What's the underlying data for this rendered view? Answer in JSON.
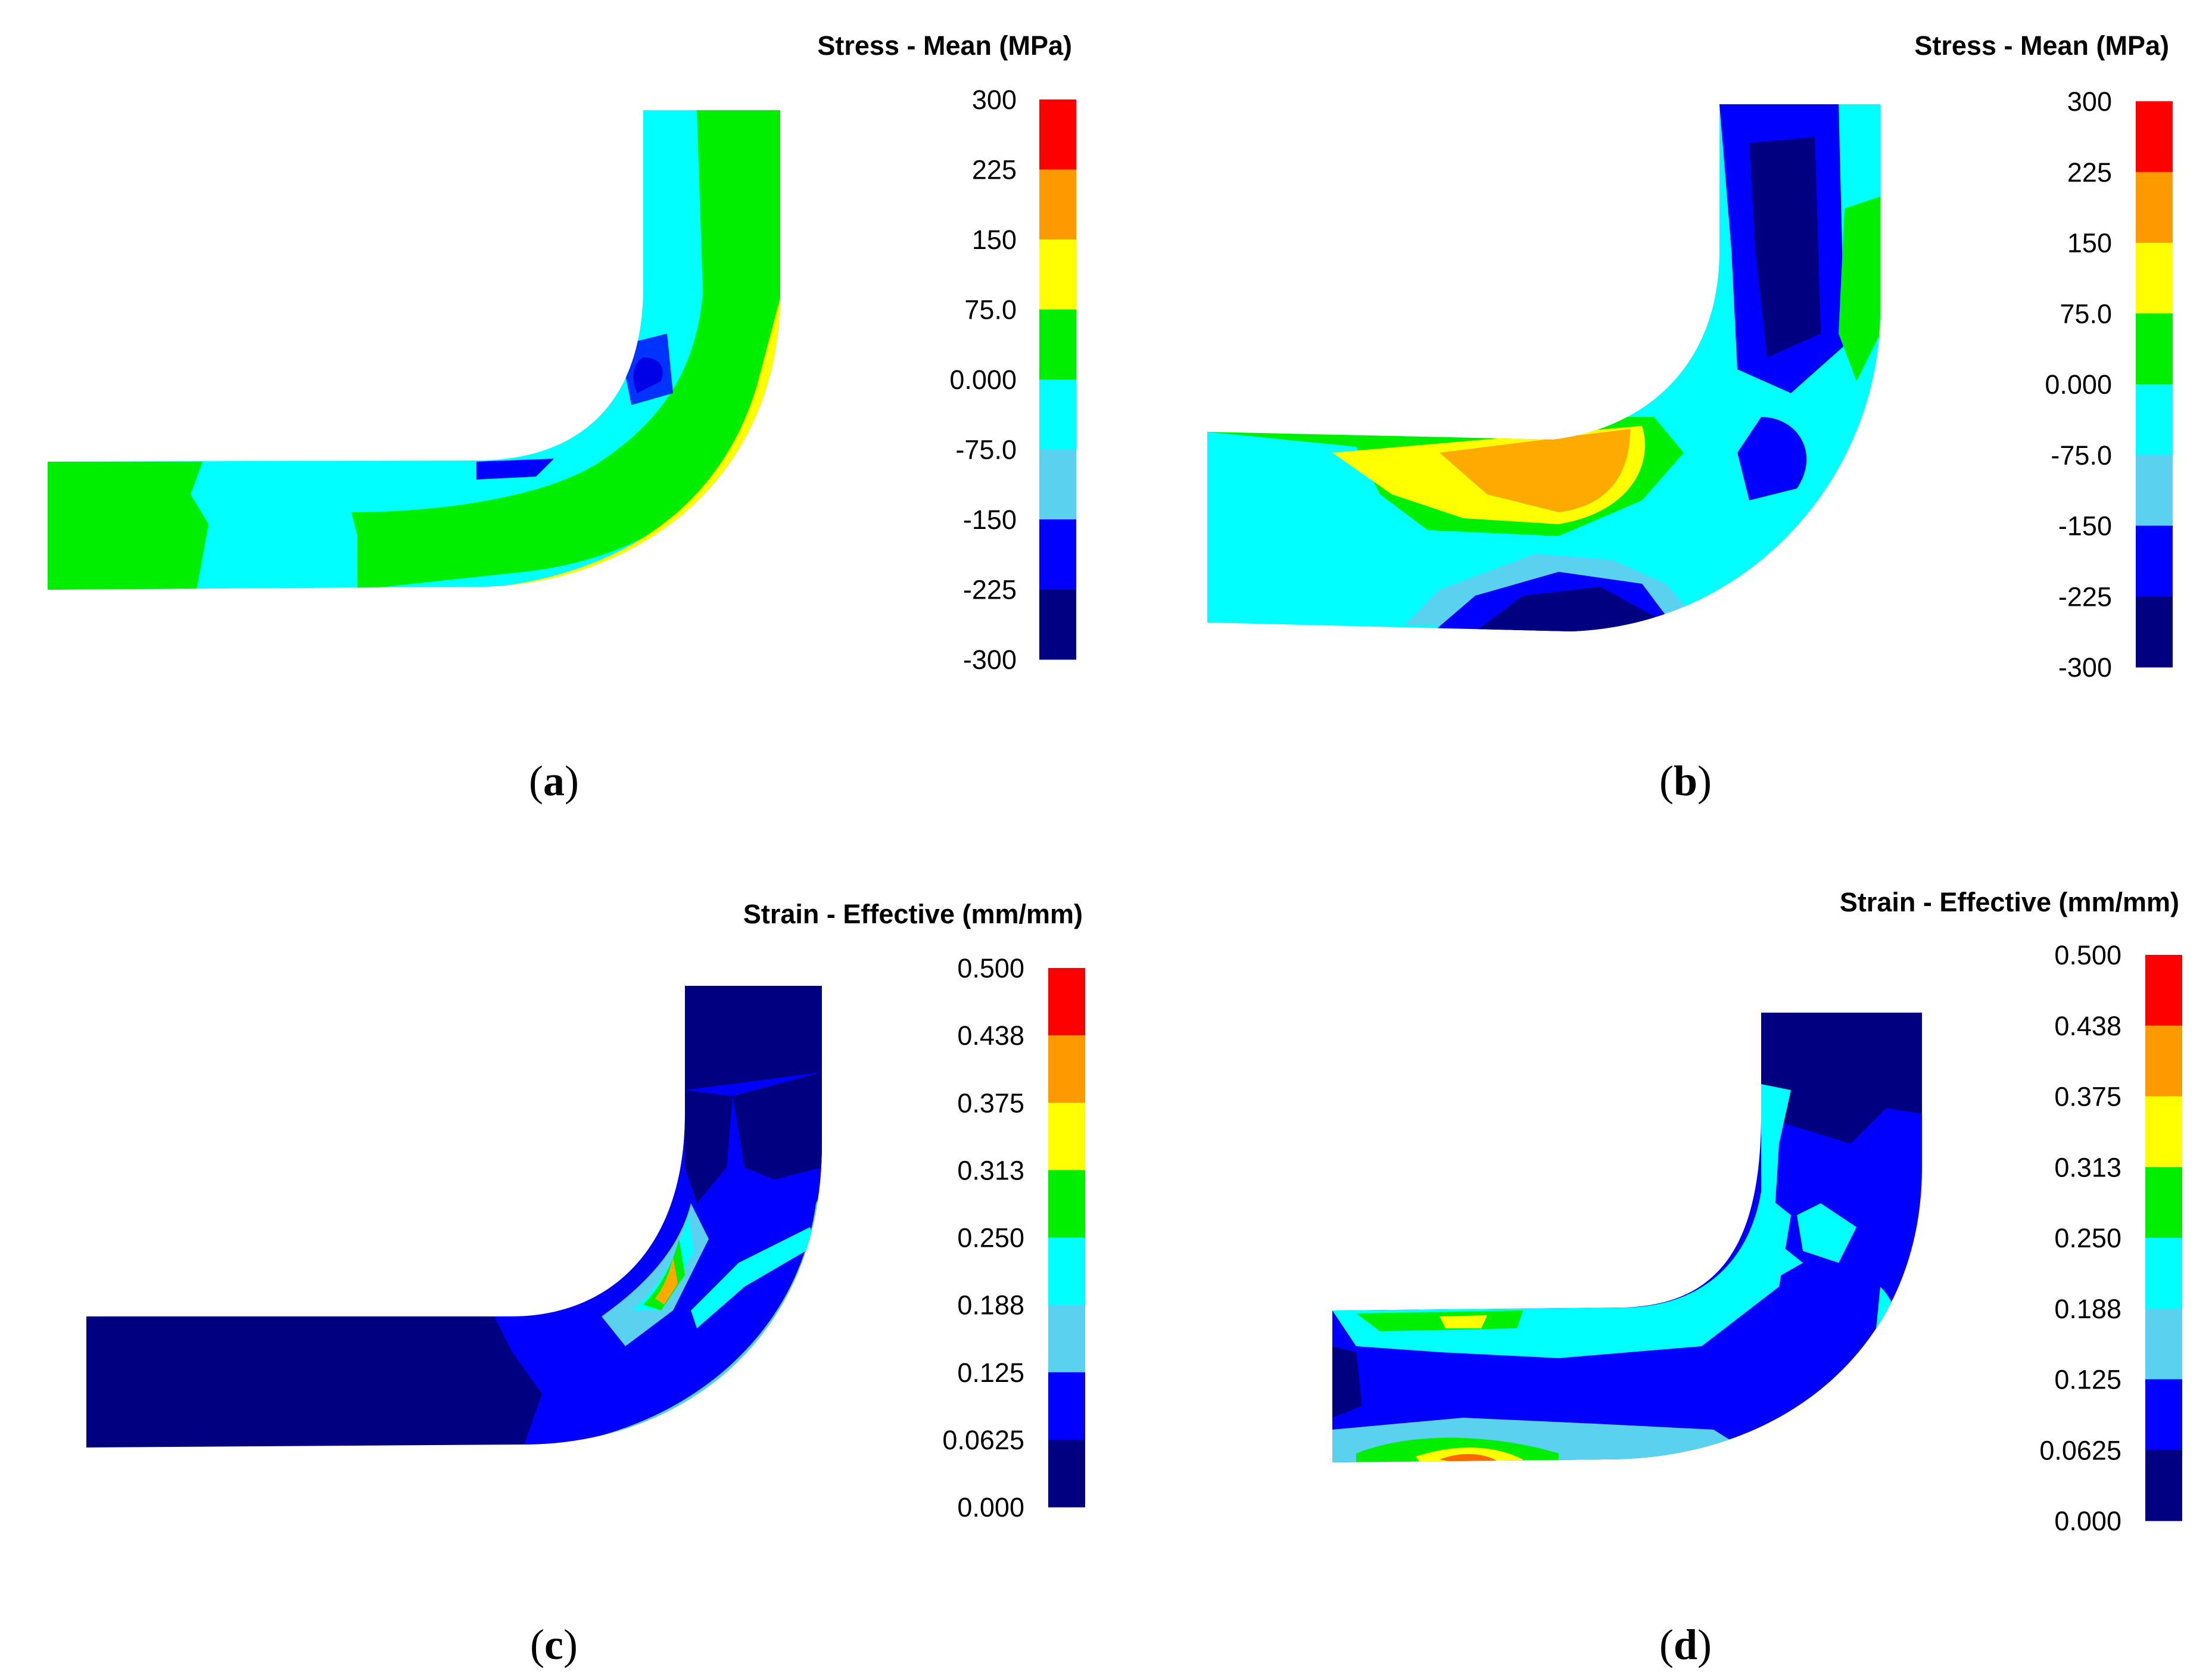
{
  "panels": [
    {
      "id": "a",
      "caption": "a",
      "legend": {
        "title": "Stress - Mean (MPa)",
        "ticks": [
          "300",
          "225",
          "150",
          "75.0",
          "0.000",
          "-75.0",
          "-150",
          "-225",
          "-300"
        ],
        "colors": [
          "#ff0000",
          "#ff9900",
          "#ffff00",
          "#00ee00",
          "#00ffff",
          "#5bd1f0",
          "#0000ff",
          "#000080"
        ]
      }
    },
    {
      "id": "b",
      "caption": "b",
      "legend": {
        "title": "Stress - Mean (MPa)",
        "ticks": [
          "300",
          "225",
          "150",
          "75.0",
          "0.000",
          "-75.0",
          "-150",
          "-225",
          "-300"
        ],
        "colors": [
          "#ff0000",
          "#ff9900",
          "#ffff00",
          "#00ee00",
          "#00ffff",
          "#5bd1f0",
          "#0000ff",
          "#000080"
        ]
      }
    },
    {
      "id": "c",
      "caption": "c",
      "legend": {
        "title": "Strain - Effective (mm/mm)",
        "ticks": [
          "0.500",
          "0.438",
          "0.375",
          "0.313",
          "0.250",
          "0.188",
          "0.125",
          "0.0625",
          "0.000"
        ],
        "colors": [
          "#ff0000",
          "#ff9900",
          "#ffff00",
          "#00ee00",
          "#00ffff",
          "#5bd1f0",
          "#0000ff",
          "#000080"
        ]
      }
    },
    {
      "id": "d",
      "caption": "d",
      "legend": {
        "title": "Strain - Effective (mm/mm)",
        "ticks": [
          "0.500",
          "0.438",
          "0.375",
          "0.313",
          "0.250",
          "0.188",
          "0.125",
          "0.0625",
          "0.000"
        ],
        "colors": [
          "#ff0000",
          "#ff9900",
          "#ffff00",
          "#00ee00",
          "#00ffff",
          "#5bd1f0",
          "#0000ff",
          "#000080"
        ]
      }
    }
  ]
}
